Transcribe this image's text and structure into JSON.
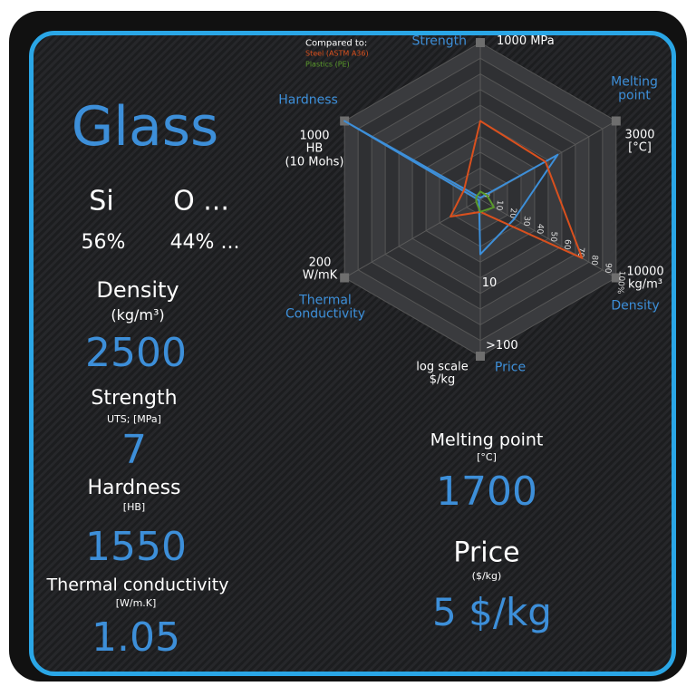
{
  "material": {
    "name": "Glass",
    "elements": [
      {
        "symbol": "Si",
        "fraction": "56%"
      },
      {
        "symbol": "O ...",
        "fraction": "44% ..."
      }
    ]
  },
  "properties": {
    "density": {
      "label": "Density",
      "unit": "(kg/m³)",
      "value": "2500"
    },
    "strength": {
      "label": "Strength",
      "unit": "UTS; [MPa]",
      "value": "7"
    },
    "hardness": {
      "label": "Hardness",
      "unit": "[HB]",
      "value": "1550"
    },
    "thermal_conductivity": {
      "label": "Thermal conductivity",
      "unit": "[W/m.K]",
      "value": "1.05"
    },
    "melting_point": {
      "label": "Melting point",
      "unit": "[°C]",
      "value": "1700"
    },
    "price": {
      "label": "Price",
      "unit": "($/kg)",
      "value": "5 $/kg"
    }
  },
  "chart_data": {
    "type": "radar",
    "legend_title": "Compared to:",
    "axes": [
      {
        "label": "Strength",
        "max_label": "1000 MPa"
      },
      {
        "label": "Melting\npoint",
        "max_label": "3000\n[°C]"
      },
      {
        "label": "Density",
        "max_label": "10000\nkg/m³"
      },
      {
        "label": "Price",
        "max_label": ">100",
        "mid_label": "10",
        "scale_label": "log scale\n$/kg"
      },
      {
        "label": "Thermal\nConductivity",
        "max_label": "200\nW/mK"
      },
      {
        "label": "Hardness",
        "max_label": "1000\nHB\n(10 Mohs)"
      }
    ],
    "rlim": [
      0,
      100
    ],
    "rticks": [
      0,
      10,
      20,
      30,
      40,
      50,
      60,
      70,
      80,
      90,
      {
        "value": 100,
        "label": "100%"
      }
    ],
    "series": [
      {
        "color": "#3d8fd9",
        "values": [
          1,
          57,
          25,
          35,
          1,
          100
        ]
      },
      {
        "name": "Steel (ASTM A36)",
        "color": "#d9501e",
        "values": [
          50,
          48,
          75,
          8,
          22,
          12
        ]
      },
      {
        "name": "Plastics (PE)",
        "color": "#5a9a2a",
        "values": [
          5,
          5,
          10,
          8,
          3,
          3
        ]
      }
    ]
  }
}
